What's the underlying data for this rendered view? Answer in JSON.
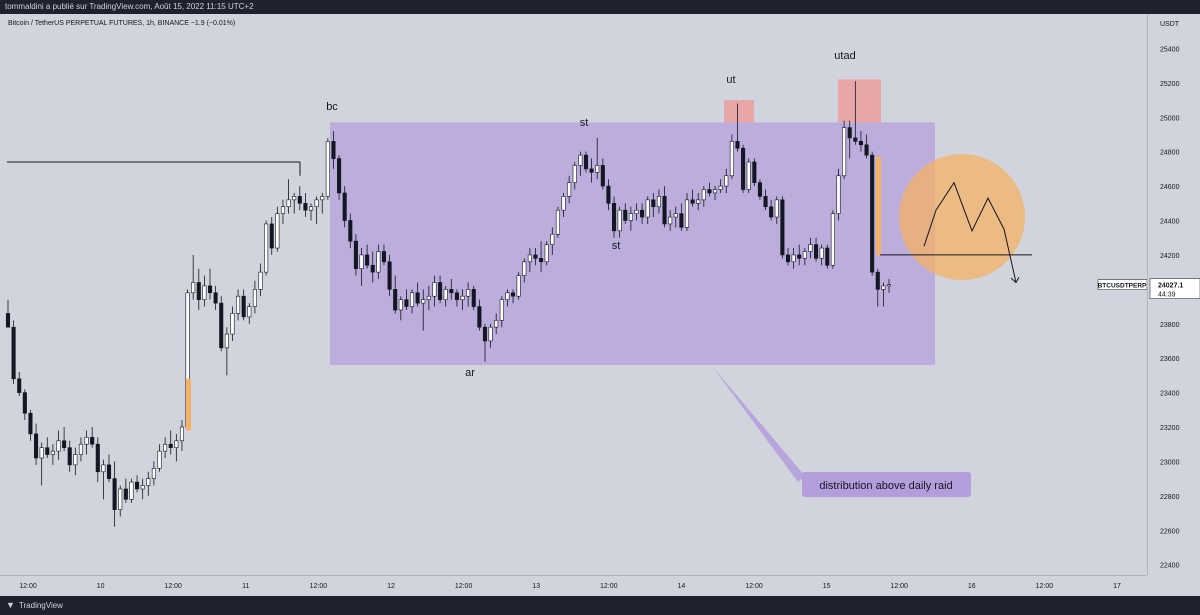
{
  "header": {
    "publisher_line": "tommaldini a publié sur TradingView.com, Août 15, 2022 11:15 UTC+2"
  },
  "symbol_line": "Bitcoin / TetherUS PERPETUAL FUTURES, 1h, BINANCE  −1.9 (−0.01%)",
  "footer": {
    "brand": "TradingView"
  },
  "chart_data": {
    "type": "candlestick",
    "y_unit": "USDT",
    "ylim": [
      22340,
      25600
    ],
    "y_ticks": [
      22400,
      22600,
      22800,
      23000,
      23200,
      23400,
      23600,
      23800,
      24000,
      24200,
      24400,
      24600,
      24800,
      25000,
      25200,
      25400
    ],
    "x_tick_labels": [
      "12:00",
      "10",
      "12:00",
      "11",
      "12:00",
      "12",
      "12:00",
      "13",
      "12:00",
      "14",
      "12:00",
      "15",
      "12:00",
      "16",
      "12:00",
      "17"
    ],
    "last_price": {
      "symbol": "BTCUSDTPERP",
      "price": "24027.1",
      "countdown": "44:39"
    },
    "colors": {
      "up": "#ffffff",
      "down": "#131722",
      "range_box": "#b39ddb",
      "supply_box": "#ef9a9a",
      "projection": "#f4b266"
    },
    "annotations": {
      "bc": "bc",
      "st1": "st",
      "st2": "st",
      "ut": "ut",
      "utad": "utad",
      "ar": "ar",
      "callout": "distribution above daily raid"
    },
    "candles": [
      [
        23860,
        23940,
        23780,
        23780
      ],
      [
        23780,
        23820,
        23450,
        23480
      ],
      [
        23480,
        23520,
        23380,
        23400
      ],
      [
        23400,
        23420,
        23240,
        23280
      ],
      [
        23280,
        23300,
        23120,
        23160
      ],
      [
        23160,
        23220,
        22980,
        23020
      ],
      [
        23020,
        23110,
        22860,
        23080
      ],
      [
        23080,
        23140,
        23020,
        23040
      ],
      [
        23040,
        23100,
        22980,
        23060
      ],
      [
        23060,
        23180,
        23010,
        23120
      ],
      [
        23120,
        23200,
        23060,
        23080
      ],
      [
        23080,
        23120,
        22940,
        22980
      ],
      [
        22980,
        23080,
        22920,
        23040
      ],
      [
        23040,
        23140,
        23000,
        23100
      ],
      [
        23100,
        23180,
        23040,
        23140
      ],
      [
        23140,
        23200,
        23080,
        23100
      ],
      [
        23100,
        23140,
        22880,
        22940
      ],
      [
        22940,
        23010,
        22780,
        22980
      ],
      [
        22980,
        23040,
        22880,
        22900
      ],
      [
        22900,
        23000,
        22620,
        22720
      ],
      [
        22720,
        22860,
        22680,
        22840
      ],
      [
        22840,
        22900,
        22760,
        22780
      ],
      [
        22780,
        22900,
        22760,
        22880
      ],
      [
        22880,
        22920,
        22820,
        22840
      ],
      [
        22840,
        22900,
        22780,
        22860
      ],
      [
        22860,
        22940,
        22800,
        22900
      ],
      [
        22900,
        23000,
        22860,
        22960
      ],
      [
        22960,
        23100,
        22940,
        23060
      ],
      [
        23060,
        23140,
        23020,
        23100
      ],
      [
        23100,
        23180,
        23040,
        23080
      ],
      [
        23080,
        23160,
        23000,
        23120
      ],
      [
        23120,
        23240,
        23060,
        23200
      ],
      [
        23200,
        24000,
        23180,
        23980
      ],
      [
        23980,
        24200,
        23940,
        24040
      ],
      [
        24040,
        24120,
        23880,
        23940
      ],
      [
        23940,
        24080,
        23900,
        24020
      ],
      [
        24020,
        24120,
        23940,
        23980
      ],
      [
        23980,
        24020,
        23880,
        23920
      ],
      [
        23920,
        23960,
        23640,
        23660
      ],
      [
        23660,
        23780,
        23500,
        23740
      ],
      [
        23740,
        23900,
        23700,
        23860
      ],
      [
        23860,
        24000,
        23820,
        23960
      ],
      [
        23960,
        24000,
        23820,
        23840
      ],
      [
        23840,
        23920,
        23800,
        23900
      ],
      [
        23900,
        24050,
        23860,
        24000
      ],
      [
        24000,
        24150,
        23960,
        24100
      ],
      [
        24100,
        24400,
        24080,
        24380
      ],
      [
        24380,
        24420,
        24200,
        24240
      ],
      [
        24240,
        24480,
        24220,
        24440
      ],
      [
        24440,
        24520,
        24380,
        24480
      ],
      [
        24480,
        24640,
        24440,
        24520
      ],
      [
        24520,
        24560,
        24440,
        24540
      ],
      [
        24540,
        24600,
        24460,
        24500
      ],
      [
        24500,
        24560,
        24420,
        24460
      ],
      [
        24460,
        24500,
        24400,
        24480
      ],
      [
        24480,
        24540,
        24380,
        24520
      ],
      [
        24520,
        24560,
        24440,
        24540
      ],
      [
        24540,
        24880,
        24520,
        24860
      ],
      [
        24860,
        24920,
        24700,
        24760
      ],
      [
        24760,
        24780,
        24520,
        24560
      ],
      [
        24560,
        24600,
        24360,
        24400
      ],
      [
        24400,
        24440,
        24240,
        24280
      ],
      [
        24280,
        24320,
        24080,
        24120
      ],
      [
        24120,
        24240,
        24020,
        24200
      ],
      [
        24200,
        24260,
        24120,
        24140
      ],
      [
        24140,
        24220,
        24040,
        24100
      ],
      [
        24100,
        24260,
        24060,
        24220
      ],
      [
        24220,
        24260,
        24140,
        24160
      ],
      [
        24160,
        24200,
        23960,
        24000
      ],
      [
        24000,
        24080,
        23860,
        23880
      ],
      [
        23880,
        23960,
        23820,
        23940
      ],
      [
        23940,
        24000,
        23880,
        23900
      ],
      [
        23900,
        24000,
        23860,
        23980
      ],
      [
        23980,
        24040,
        23900,
        23920
      ],
      [
        23920,
        24000,
        23760,
        23940
      ],
      [
        23940,
        24020,
        23880,
        23960
      ],
      [
        23960,
        24080,
        23900,
        24040
      ],
      [
        24040,
        24080,
        23920,
        23940
      ],
      [
        23940,
        24020,
        23900,
        24000
      ],
      [
        24000,
        24060,
        23940,
        23980
      ],
      [
        23980,
        24000,
        23900,
        23940
      ],
      [
        23940,
        24000,
        23880,
        23960
      ],
      [
        23960,
        24040,
        23900,
        24000
      ],
      [
        24000,
        24020,
        23880,
        23900
      ],
      [
        23900,
        23940,
        23760,
        23780
      ],
      [
        23780,
        23800,
        23580,
        23700
      ],
      [
        23700,
        23800,
        23660,
        23780
      ],
      [
        23780,
        23860,
        23740,
        23820
      ],
      [
        23820,
        23960,
        23780,
        23940
      ],
      [
        23940,
        24000,
        23900,
        23980
      ],
      [
        23980,
        24000,
        23920,
        23960
      ],
      [
        23960,
        24100,
        23940,
        24080
      ],
      [
        24080,
        24180,
        24040,
        24160
      ],
      [
        24160,
        24240,
        24100,
        24200
      ],
      [
        24200,
        24240,
        24140,
        24180
      ],
      [
        24180,
        24280,
        24100,
        24160
      ],
      [
        24160,
        24280,
        24140,
        24260
      ],
      [
        24260,
        24360,
        24200,
        24320
      ],
      [
        24320,
        24480,
        24300,
        24460
      ],
      [
        24460,
        24560,
        24420,
        24540
      ],
      [
        24540,
        24660,
        24500,
        24620
      ],
      [
        24620,
        24740,
        24580,
        24720
      ],
      [
        24720,
        24800,
        24660,
        24780
      ],
      [
        24780,
        24800,
        24680,
        24700
      ],
      [
        24700,
        24760,
        24620,
        24680
      ],
      [
        24680,
        24880,
        24640,
        24720
      ],
      [
        24720,
        24760,
        24580,
        24600
      ],
      [
        24600,
        24640,
        24460,
        24500
      ],
      [
        24500,
        24540,
        24300,
        24340
      ],
      [
        24340,
        24480,
        24300,
        24460
      ],
      [
        24460,
        24500,
        24380,
        24400
      ],
      [
        24400,
        24480,
        24340,
        24440
      ],
      [
        24440,
        24500,
        24400,
        24460
      ],
      [
        24460,
        24500,
        24380,
        24420
      ],
      [
        24420,
        24540,
        24380,
        24520
      ],
      [
        24520,
        24560,
        24420,
        24480
      ],
      [
        24480,
        24580,
        24440,
        24540
      ],
      [
        24540,
        24600,
        24360,
        24380
      ],
      [
        24380,
        24460,
        24340,
        24420
      ],
      [
        24420,
        24480,
        24360,
        24440
      ],
      [
        24440,
        24500,
        24340,
        24360
      ],
      [
        24360,
        24560,
        24340,
        24520
      ],
      [
        24520,
        24580,
        24480,
        24500
      ],
      [
        24500,
        24560,
        24460,
        24520
      ],
      [
        24520,
        24600,
        24480,
        24580
      ],
      [
        24580,
        24620,
        24540,
        24560
      ],
      [
        24560,
        24600,
        24520,
        24580
      ],
      [
        24580,
        24640,
        24560,
        24600
      ],
      [
        24600,
        24700,
        24560,
        24660
      ],
      [
        24660,
        24900,
        24640,
        24860
      ],
      [
        24860,
        25080,
        24800,
        24820
      ],
      [
        24820,
        24840,
        24560,
        24580
      ],
      [
        24580,
        24760,
        24560,
        24740
      ],
      [
        24740,
        24760,
        24600,
        24620
      ],
      [
        24620,
        24640,
        24520,
        24540
      ],
      [
        24540,
        24580,
        24460,
        24480
      ],
      [
        24480,
        24520,
        24400,
        24420
      ],
      [
        24420,
        24540,
        24380,
        24520
      ],
      [
        24520,
        24540,
        24180,
        24200
      ],
      [
        24200,
        24240,
        24140,
        24160
      ],
      [
        24160,
        24240,
        24120,
        24200
      ],
      [
        24200,
        24260,
        24140,
        24180
      ],
      [
        24180,
        24240,
        24140,
        24220
      ],
      [
        24220,
        24300,
        24180,
        24260
      ],
      [
        24260,
        24300,
        24160,
        24180
      ],
      [
        24180,
        24260,
        24140,
        24240
      ],
      [
        24240,
        24260,
        24120,
        24140
      ],
      [
        24140,
        24460,
        24120,
        24440
      ],
      [
        24440,
        24700,
        24400,
        24660
      ],
      [
        24660,
        24980,
        24640,
        24940
      ],
      [
        24940,
        24980,
        24760,
        24880
      ],
      [
        24880,
        25210,
        24840,
        24860
      ],
      [
        24860,
        24920,
        24800,
        24840
      ],
      [
        24840,
        24900,
        24760,
        24780
      ],
      [
        24780,
        24800,
        24080,
        24100
      ],
      [
        24100,
        24120,
        23900,
        24000
      ],
      [
        24000,
        24040,
        23900,
        24020
      ],
      [
        24020,
        24060,
        23980,
        24027
      ]
    ]
  }
}
